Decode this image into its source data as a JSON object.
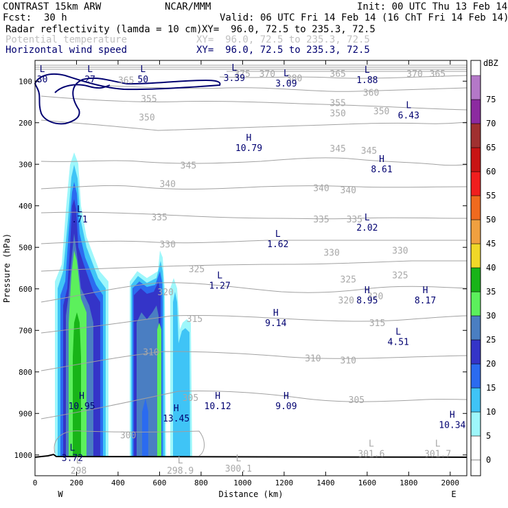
{
  "header": {
    "model": "CONTRAST 15km ARW",
    "center": "NCAR/MMM",
    "init": "Init: 00 UTC Thu 13 Feb 14",
    "fcst_label": "Fcst:",
    "fcst_value": "30 h",
    "valid": "Valid: 06 UTC Fri 14 Feb 14 (16 ChT Fri 14 Feb 14)",
    "fields": [
      {
        "name": "Radar reflectivity (lamda = 10 cm)",
        "xy": "XY=  96.0, 72.5 to 235.3, 72.5",
        "color": "#000000"
      },
      {
        "name": "Potential temperature",
        "xy": "XY=  96.0, 72.5 to 235.3, 72.5",
        "color": "#c0c0c0"
      },
      {
        "name": "Horizontal wind speed",
        "xy": "XY=  96.0, 72.5 to 235.3, 72.5",
        "color": "#000070"
      }
    ]
  },
  "chart_data": {
    "type": "heatmap",
    "xlabel": "Distance (km)",
    "ylabel": "Pressure (hPa)",
    "xlim": [
      0,
      2080
    ],
    "ylim": [
      1050,
      50
    ],
    "xticks": [
      0,
      200,
      400,
      600,
      800,
      1000,
      1200,
      1400,
      1600,
      1800,
      2000
    ],
    "yticks": [
      100,
      200,
      300,
      400,
      500,
      600,
      700,
      800,
      900,
      1000
    ],
    "x_end_labels": {
      "left": "W",
      "right": "E"
    },
    "colorbar": {
      "unit": "dBZ",
      "levels": [
        0,
        5,
        10,
        15,
        20,
        25,
        30,
        35,
        40,
        45,
        50,
        55,
        60,
        65,
        70,
        75
      ],
      "colors": [
        "#ffffff",
        "#9ef7fb",
        "#3fc4f6",
        "#2b6bf0",
        "#3434c8",
        "#4a7ec2",
        "#5cf05c",
        "#18b418",
        "#f0d828",
        "#f0a040",
        "#f06a1e",
        "#f01e1e",
        "#c81414",
        "#a03030",
        "#8c2aa0",
        "#b478c8"
      ]
    },
    "reflectivity_cells": [
      {
        "x_range": [
          90,
          345
        ],
        "top_hPa": 290,
        "max_dBZ": 30
      },
      {
        "x_range": [
          465,
          620
        ],
        "top_hPa": 530,
        "max_dBZ": 25
      },
      {
        "x_range": [
          630,
          760
        ],
        "top_hPa": 590,
        "max_dBZ": 10
      }
    ],
    "theta_contours": [
      {
        "label": "365",
        "label_pos": [
          500,
          105
        ]
      },
      {
        "label": "360",
        "label_pos": [
          1590,
          135
        ]
      },
      {
        "label": "355",
        "label_pos": [
          580,
          150
        ]
      },
      {
        "label": "350",
        "label_pos": [
          590,
          190
        ]
      },
      {
        "label": "345",
        "label_pos": [
          1380,
          285
        ]
      },
      {
        "label": "340",
        "label_pos": [
          1380,
          355
        ]
      },
      {
        "label": "335",
        "label_pos": [
          1370,
          440
        ]
      },
      {
        "label": "330",
        "label_pos": [
          1360,
          515
        ]
      },
      {
        "label": "325",
        "label_pos": [
          1400,
          585
        ]
      },
      {
        "label": "320",
        "label_pos": [
          1380,
          635
        ]
      },
      {
        "label": "315",
        "label_pos": [
          1380,
          690
        ]
      },
      {
        "label": "310",
        "label_pos": [
          1360,
          780
        ]
      },
      {
        "label": "305",
        "label_pos": [
          1420,
          870
        ]
      },
      {
        "label": "300",
        "label_pos": [
          420,
          960
        ]
      }
    ],
    "theta_labels": [
      {
        "text": "345",
        "x": 700,
        "y": 310
      },
      {
        "text": "340",
        "x": 600,
        "y": 355
      },
      {
        "text": "335",
        "x": 560,
        "y": 435
      },
      {
        "text": "330",
        "x": 600,
        "y": 500
      },
      {
        "text": "325",
        "x": 740,
        "y": 560
      },
      {
        "text": "320",
        "x": 590,
        "y": 615
      },
      {
        "text": "315",
        "x": 730,
        "y": 680
      },
      {
        "text": "310",
        "x": 520,
        "y": 760
      },
      {
        "text": "305",
        "x": 710,
        "y": 870
      },
      {
        "text": "300",
        "x": 410,
        "y": 960
      },
      {
        "text": "355",
        "x": 510,
        "y": 150
      },
      {
        "text": "350",
        "x": 500,
        "y": 195
      },
      {
        "text": "365",
        "x": 400,
        "y": 105
      },
      {
        "text": "370",
        "x": 1080,
        "y": 90
      },
      {
        "text": "365",
        "x": 1420,
        "y": 90
      },
      {
        "text": "360",
        "x": 1580,
        "y": 135
      },
      {
        "text": "355",
        "x": 1420,
        "y": 160
      },
      {
        "text": "350",
        "x": 1420,
        "y": 185
      },
      {
        "text": "350",
        "x": 1630,
        "y": 180
      },
      {
        "text": "345",
        "x": 1420,
        "y": 270
      },
      {
        "text": "345",
        "x": 1570,
        "y": 275
      },
      {
        "text": "340",
        "x": 1340,
        "y": 365
      },
      {
        "text": "340",
        "x": 1470,
        "y": 370
      },
      {
        "text": "335",
        "x": 1340,
        "y": 440
      },
      {
        "text": "335",
        "x": 1500,
        "y": 440
      },
      {
        "text": "330",
        "x": 1390,
        "y": 520
      },
      {
        "text": "330",
        "x": 1720,
        "y": 515
      },
      {
        "text": "325",
        "x": 1470,
        "y": 585
      },
      {
        "text": "325",
        "x": 1720,
        "y": 575
      },
      {
        "text": "320",
        "x": 1460,
        "y": 635
      },
      {
        "text": "320",
        "x": 1600,
        "y": 625
      },
      {
        "text": "315",
        "x": 1610,
        "y": 690
      },
      {
        "text": "310",
        "x": 1300,
        "y": 775
      },
      {
        "text": "310",
        "x": 1470,
        "y": 780
      },
      {
        "text": "305",
        "x": 1510,
        "y": 875
      },
      {
        "text": "370",
        "x": 1790,
        "y": 90
      },
      {
        "text": "365",
        "x": 1900,
        "y": 90
      },
      {
        "text": "380",
        "x": 1210,
        "y": 100
      },
      {
        "text": "375",
        "x": 960,
        "y": 90
      }
    ],
    "wind_contours": [
      {
        "label": "20",
        "value_ms": 20
      }
    ],
    "extrema": [
      {
        "type": "L",
        "value": "30",
        "x": 35,
        "y": 78
      },
      {
        "type": "L",
        "value": "27",
        "x": 265,
        "y": 78
      },
      {
        "type": "L",
        "value": "50",
        "x": 520,
        "y": 78
      },
      {
        "type": "L",
        "value": "3.39",
        "x": 960,
        "y": 75
      },
      {
        "type": "L",
        "value": "3.09",
        "x": 1210,
        "y": 88
      },
      {
        "type": "L",
        "value": "1.88",
        "x": 1600,
        "y": 80
      },
      {
        "type": "L",
        "value": "6.43",
        "x": 1800,
        "y": 165
      },
      {
        "type": "H",
        "value": "10.79",
        "x": 1030,
        "y": 243
      },
      {
        "type": "H",
        "value": "8.61",
        "x": 1670,
        "y": 295
      },
      {
        "type": "L",
        "value": ".71",
        "x": 215,
        "y": 415
      },
      {
        "type": "L",
        "value": "2.02",
        "x": 1600,
        "y": 435
      },
      {
        "type": "L",
        "value": "1.62",
        "x": 1170,
        "y": 475
      },
      {
        "type": "L",
        "value": "1.27",
        "x": 890,
        "y": 575
      },
      {
        "type": "H",
        "value": "8.95",
        "x": 1600,
        "y": 610
      },
      {
        "type": "H",
        "value": "8.17",
        "x": 1880,
        "y": 610
      },
      {
        "type": "H",
        "value": "9.14",
        "x": 1160,
        "y": 665
      },
      {
        "type": "L",
        "value": "4.51",
        "x": 1750,
        "y": 710
      },
      {
        "type": "H",
        "value": "10.95",
        "x": 225,
        "y": 865
      },
      {
        "type": "H",
        "value": "10.12",
        "x": 880,
        "y": 865
      },
      {
        "type": "H",
        "value": "9.09",
        "x": 1210,
        "y": 865
      },
      {
        "type": "H",
        "value": "13.45",
        "x": 680,
        "y": 895
      },
      {
        "type": "H",
        "value": "10.34",
        "x": 2010,
        "y": 910
      },
      {
        "type": "L",
        "value": "3.72",
        "x": 180,
        "y": 990
      },
      {
        "type": "L",
        "value": "301.6",
        "x": 1620,
        "y": 980
      },
      {
        "type": "L",
        "value": "301.7",
        "x": 1940,
        "y": 980
      },
      {
        "type": "L",
        "value": "300.1",
        "x": 980,
        "y": 1015
      },
      {
        "type": "L",
        "value": "298",
        "x": 210,
        "y": 1020
      },
      {
        "type": "L",
        "value": "298.9",
        "x": 700,
        "y": 1020
      }
    ]
  }
}
